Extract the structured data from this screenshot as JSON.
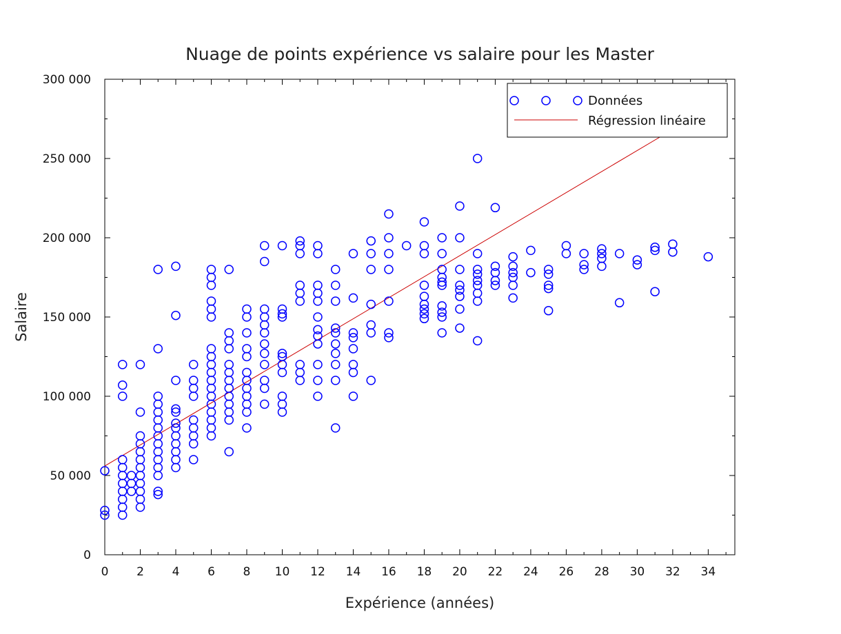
{
  "chart_data": {
    "type": "scatter",
    "title": "Nuage de points expérience vs salaire pour les Master",
    "xlabel": "Expérience (années)",
    "ylabel": "Salaire",
    "xlim": [
      0,
      35.5
    ],
    "ylim": [
      0,
      300000
    ],
    "x_ticks": [
      0,
      2,
      4,
      6,
      8,
      10,
      12,
      14,
      16,
      18,
      20,
      22,
      24,
      26,
      28,
      30,
      32,
      34
    ],
    "x_tick_labels": [
      "0",
      "2",
      "4",
      "6",
      "8",
      "10",
      "12",
      "14",
      "16",
      "18",
      "20",
      "22",
      "24",
      "26",
      "28",
      "30",
      "32",
      "34"
    ],
    "y_ticks": [
      0,
      50000,
      100000,
      150000,
      200000,
      250000,
      300000
    ],
    "y_tick_labels": [
      "0",
      "50 000",
      "100 000",
      "150 000",
      "200 000",
      "250 000",
      "300 000"
    ],
    "grid": false,
    "legend_position": "top-right",
    "colors": {
      "points": "#0000ff",
      "regression": "#cc0000",
      "axes": "#000000"
    },
    "series": [
      {
        "name": "Données",
        "kind": "scatter",
        "points": [
          [
            0,
            53000
          ],
          [
            0,
            28000
          ],
          [
            0,
            25000
          ],
          [
            1,
            120000
          ],
          [
            1,
            107000
          ],
          [
            1,
            100000
          ],
          [
            1,
            60000
          ],
          [
            1,
            55000
          ],
          [
            1,
            50000
          ],
          [
            1,
            45000
          ],
          [
            1,
            40000
          ],
          [
            1,
            35000
          ],
          [
            1,
            30000
          ],
          [
            1,
            25000
          ],
          [
            1.5,
            50000
          ],
          [
            1.5,
            45000
          ],
          [
            1.5,
            40000
          ],
          [
            2,
            120000
          ],
          [
            2,
            90000
          ],
          [
            2,
            75000
          ],
          [
            2,
            70000
          ],
          [
            2,
            65000
          ],
          [
            2,
            60000
          ],
          [
            2,
            55000
          ],
          [
            2,
            50000
          ],
          [
            2,
            45000
          ],
          [
            2,
            40000
          ],
          [
            2,
            35000
          ],
          [
            2,
            30000
          ],
          [
            3,
            180000
          ],
          [
            3,
            130000
          ],
          [
            3,
            100000
          ],
          [
            3,
            95000
          ],
          [
            3,
            90000
          ],
          [
            3,
            85000
          ],
          [
            3,
            80000
          ],
          [
            3,
            75000
          ],
          [
            3,
            70000
          ],
          [
            3,
            65000
          ],
          [
            3,
            60000
          ],
          [
            3,
            55000
          ],
          [
            3,
            50000
          ],
          [
            3,
            40000
          ],
          [
            3,
            38000
          ],
          [
            4,
            182000
          ],
          [
            4,
            151000
          ],
          [
            4,
            110000
          ],
          [
            4,
            92000
          ],
          [
            4,
            90000
          ],
          [
            4,
            83000
          ],
          [
            4,
            80000
          ],
          [
            4,
            75000
          ],
          [
            4,
            70000
          ],
          [
            4,
            65000
          ],
          [
            4,
            60000
          ],
          [
            4,
            55000
          ],
          [
            5,
            120000
          ],
          [
            5,
            110000
          ],
          [
            5,
            105000
          ],
          [
            5,
            100000
          ],
          [
            5,
            85000
          ],
          [
            5,
            80000
          ],
          [
            5,
            75000
          ],
          [
            5,
            70000
          ],
          [
            5,
            60000
          ],
          [
            6,
            180000
          ],
          [
            6,
            175000
          ],
          [
            6,
            170000
          ],
          [
            6,
            160000
          ],
          [
            6,
            155000
          ],
          [
            6,
            150000
          ],
          [
            6,
            130000
          ],
          [
            6,
            125000
          ],
          [
            6,
            120000
          ],
          [
            6,
            115000
          ],
          [
            6,
            110000
          ],
          [
            6,
            105000
          ],
          [
            6,
            100000
          ],
          [
            6,
            95000
          ],
          [
            6,
            90000
          ],
          [
            6,
            85000
          ],
          [
            6,
            80000
          ],
          [
            6,
            75000
          ],
          [
            7,
            180000
          ],
          [
            7,
            140000
          ],
          [
            7,
            135000
          ],
          [
            7,
            130000
          ],
          [
            7,
            120000
          ],
          [
            7,
            115000
          ],
          [
            7,
            110000
          ],
          [
            7,
            105000
          ],
          [
            7,
            100000
          ],
          [
            7,
            95000
          ],
          [
            7,
            90000
          ],
          [
            7,
            85000
          ],
          [
            7,
            65000
          ],
          [
            8,
            155000
          ],
          [
            8,
            150000
          ],
          [
            8,
            140000
          ],
          [
            8,
            130000
          ],
          [
            8,
            125000
          ],
          [
            8,
            115000
          ],
          [
            8,
            110000
          ],
          [
            8,
            105000
          ],
          [
            8,
            100000
          ],
          [
            8,
            95000
          ],
          [
            8,
            90000
          ],
          [
            8,
            80000
          ],
          [
            9,
            195000
          ],
          [
            9,
            185000
          ],
          [
            9,
            155000
          ],
          [
            9,
            150000
          ],
          [
            9,
            145000
          ],
          [
            9,
            140000
          ],
          [
            9,
            133000
          ],
          [
            9,
            127000
          ],
          [
            9,
            120000
          ],
          [
            9,
            110000
          ],
          [
            9,
            105000
          ],
          [
            9,
            95000
          ],
          [
            10,
            195000
          ],
          [
            10,
            155000
          ],
          [
            10,
            152000
          ],
          [
            10,
            150000
          ],
          [
            10,
            127000
          ],
          [
            10,
            125000
          ],
          [
            10,
            120000
          ],
          [
            10,
            115000
          ],
          [
            10,
            100000
          ],
          [
            10,
            95000
          ],
          [
            10,
            90000
          ],
          [
            11,
            198000
          ],
          [
            11,
            195000
          ],
          [
            11,
            190000
          ],
          [
            11,
            170000
          ],
          [
            11,
            165000
          ],
          [
            11,
            160000
          ],
          [
            11,
            120000
          ],
          [
            11,
            115000
          ],
          [
            11,
            110000
          ],
          [
            12,
            195000
          ],
          [
            12,
            190000
          ],
          [
            12,
            170000
          ],
          [
            12,
            165000
          ],
          [
            12,
            160000
          ],
          [
            12,
            150000
          ],
          [
            12,
            142000
          ],
          [
            12,
            138000
          ],
          [
            12,
            133000
          ],
          [
            12,
            120000
          ],
          [
            12,
            110000
          ],
          [
            12,
            100000
          ],
          [
            13,
            180000
          ],
          [
            13,
            170000
          ],
          [
            13,
            160000
          ],
          [
            13,
            143000
          ],
          [
            13,
            140000
          ],
          [
            13,
            133000
          ],
          [
            13,
            127000
          ],
          [
            13,
            120000
          ],
          [
            13,
            110000
          ],
          [
            13,
            80000
          ],
          [
            14,
            190000
          ],
          [
            14,
            162000
          ],
          [
            14,
            140000
          ],
          [
            14,
            137000
          ],
          [
            14,
            130000
          ],
          [
            14,
            120000
          ],
          [
            14,
            115000
          ],
          [
            14,
            100000
          ],
          [
            15,
            198000
          ],
          [
            15,
            190000
          ],
          [
            15,
            180000
          ],
          [
            15,
            158000
          ],
          [
            15,
            145000
          ],
          [
            15,
            140000
          ],
          [
            15,
            110000
          ],
          [
            16,
            215000
          ],
          [
            16,
            200000
          ],
          [
            16,
            190000
          ],
          [
            16,
            180000
          ],
          [
            16,
            160000
          ],
          [
            16,
            140000
          ],
          [
            16,
            137000
          ],
          [
            17,
            195000
          ],
          [
            18,
            210000
          ],
          [
            18,
            195000
          ],
          [
            18,
            190000
          ],
          [
            18,
            170000
          ],
          [
            18,
            163000
          ],
          [
            18,
            158000
          ],
          [
            18,
            155000
          ],
          [
            18,
            152000
          ],
          [
            18,
            149000
          ],
          [
            19,
            200000
          ],
          [
            19,
            190000
          ],
          [
            19,
            180000
          ],
          [
            19,
            175000
          ],
          [
            19,
            172000
          ],
          [
            19,
            170000
          ],
          [
            19,
            157000
          ],
          [
            19,
            153000
          ],
          [
            19,
            150000
          ],
          [
            19,
            140000
          ],
          [
            20,
            220000
          ],
          [
            20,
            200000
          ],
          [
            20,
            180000
          ],
          [
            20,
            170000
          ],
          [
            20,
            167000
          ],
          [
            20,
            163000
          ],
          [
            20,
            155000
          ],
          [
            20,
            143000
          ],
          [
            21,
            250000
          ],
          [
            21,
            190000
          ],
          [
            21,
            180000
          ],
          [
            21,
            177000
          ],
          [
            21,
            173000
          ],
          [
            21,
            170000
          ],
          [
            21,
            165000
          ],
          [
            21,
            160000
          ],
          [
            21,
            135000
          ],
          [
            22,
            219000
          ],
          [
            22,
            182000
          ],
          [
            22,
            178000
          ],
          [
            22,
            173000
          ],
          [
            22,
            170000
          ],
          [
            23,
            188000
          ],
          [
            23,
            182000
          ],
          [
            23,
            178000
          ],
          [
            23,
            175000
          ],
          [
            23,
            170000
          ],
          [
            23,
            162000
          ],
          [
            24,
            192000
          ],
          [
            24,
            178000
          ],
          [
            25,
            180000
          ],
          [
            25,
            177000
          ],
          [
            25,
            170000
          ],
          [
            25,
            168000
          ],
          [
            25,
            154000
          ],
          [
            26,
            195000
          ],
          [
            26,
            190000
          ],
          [
            27,
            190000
          ],
          [
            27,
            183000
          ],
          [
            27,
            180000
          ],
          [
            28,
            193000
          ],
          [
            28,
            190000
          ],
          [
            28,
            187000
          ],
          [
            28,
            182000
          ],
          [
            29,
            190000
          ],
          [
            29,
            159000
          ],
          [
            30,
            186000
          ],
          [
            30,
            183000
          ],
          [
            31,
            194000
          ],
          [
            31,
            192000
          ],
          [
            31,
            166000
          ],
          [
            32,
            196000
          ],
          [
            32,
            191000
          ],
          [
            34,
            188000
          ]
        ]
      },
      {
        "name": "Régression linéaire",
        "kind": "line",
        "points": [
          [
            0,
            56000
          ],
          [
            31.5,
            265000
          ]
        ]
      }
    ]
  }
}
